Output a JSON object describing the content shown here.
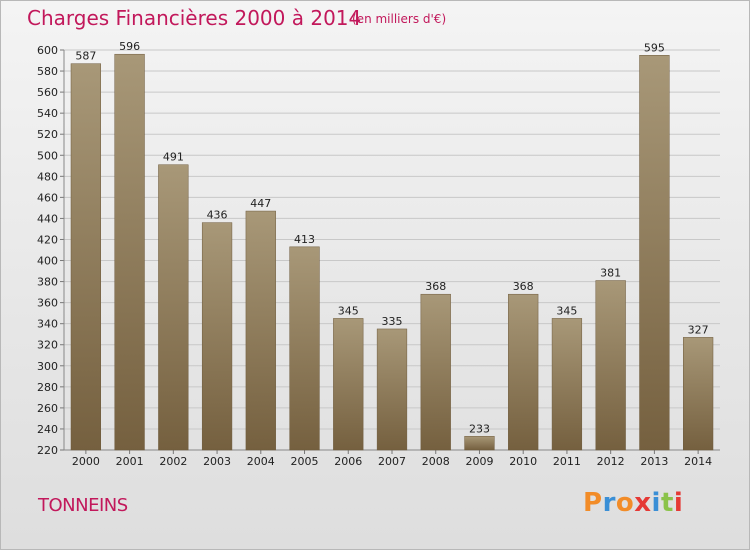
{
  "header": {
    "title": "Charges Financières 2000 à 2014",
    "subtitle": "(en milliers d'€)"
  },
  "footer": {
    "name": "TONNEINS",
    "logo": "Proxiti"
  },
  "colors": {
    "title": "#c2185b",
    "bar_top": "#a89878",
    "bar_bottom": "#75603f",
    "grid": "#c8c8c8",
    "logo_letters": [
      "#f28c28",
      "#3a8fd6",
      "#f28c28",
      "#e53935",
      "#3a8fd6",
      "#8bc34a",
      "#e53935"
    ]
  },
  "chart_data": {
    "type": "bar",
    "title": "Charges Financières 2000 à 2014",
    "subtitle": "(en milliers d'€)",
    "xlabel": "",
    "ylabel": "",
    "categories": [
      "2000",
      "2001",
      "2002",
      "2003",
      "2004",
      "2005",
      "2006",
      "2007",
      "2008",
      "2009",
      "2010",
      "2011",
      "2012",
      "2013",
      "2014"
    ],
    "values": [
      587,
      596,
      491,
      436,
      447,
      413,
      345,
      335,
      368,
      233,
      368,
      345,
      381,
      595,
      327
    ],
    "ylim": [
      220,
      600
    ],
    "yticks": [
      220,
      240,
      260,
      280,
      300,
      320,
      340,
      360,
      380,
      400,
      420,
      440,
      460,
      480,
      500,
      520,
      540,
      560,
      580,
      600
    ],
    "grid": true,
    "legend": "none"
  }
}
